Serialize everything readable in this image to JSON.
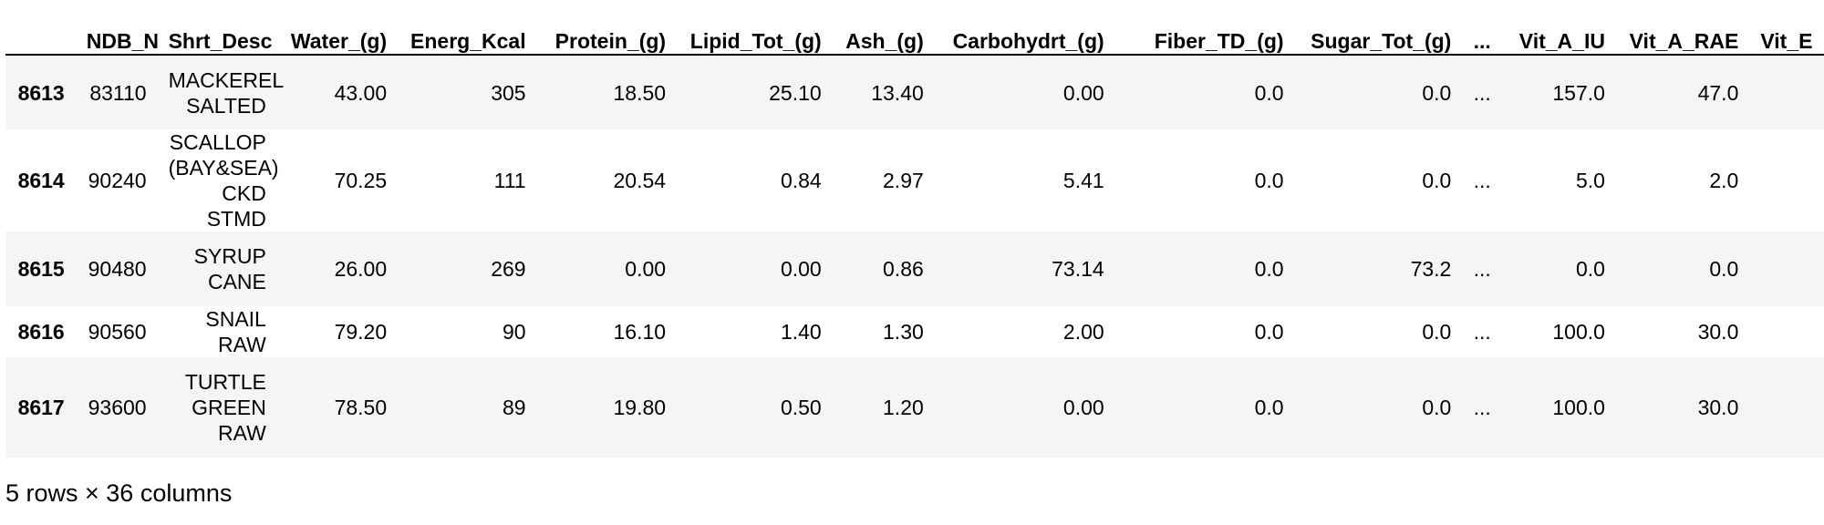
{
  "table": {
    "columns": [
      "",
      "NDB_No",
      "Shrt_Desc",
      "Water_(g)",
      "Energ_Kcal",
      "Protein_(g)",
      "Lipid_Tot_(g)",
      "Ash_(g)",
      "Carbohydrt_(g)",
      "Fiber_TD_(g)",
      "Sugar_Tot_(g)",
      "...",
      "Vit_A_IU",
      "Vit_A_RAE",
      "Vit_E"
    ],
    "rows": [
      {
        "index": "8613",
        "cells": [
          "83110",
          "MACKEREL SALTED",
          "43.00",
          "305",
          "18.50",
          "25.10",
          "13.40",
          "0.00",
          "0.0",
          "0.0",
          "...",
          "157.0",
          "47.0",
          ""
        ]
      },
      {
        "index": "8614",
        "cells": [
          "90240",
          "SCALLOP (BAY&SEA) CKD STMD",
          "70.25",
          "111",
          "20.54",
          "0.84",
          "2.97",
          "5.41",
          "0.0",
          "0.0",
          "...",
          "5.0",
          "2.0",
          ""
        ]
      },
      {
        "index": "8615",
        "cells": [
          "90480",
          "SYRUP CANE",
          "26.00",
          "269",
          "0.00",
          "0.00",
          "0.86",
          "73.14",
          "0.0",
          "73.2",
          "...",
          "0.0",
          "0.0",
          ""
        ]
      },
      {
        "index": "8616",
        "cells": [
          "90560",
          "SNAIL RAW",
          "79.20",
          "90",
          "16.10",
          "1.40",
          "1.30",
          "2.00",
          "0.0",
          "0.0",
          "...",
          "100.0",
          "30.0",
          ""
        ]
      },
      {
        "index": "8617",
        "cells": [
          "93600",
          "TURTLE GREEN RAW",
          "78.50",
          "89",
          "19.80",
          "0.50",
          "1.20",
          "0.00",
          "0.0",
          "0.0",
          "...",
          "100.0",
          "30.0",
          ""
        ]
      }
    ]
  },
  "footer": {
    "shape_text": "5 rows × 36 columns"
  }
}
